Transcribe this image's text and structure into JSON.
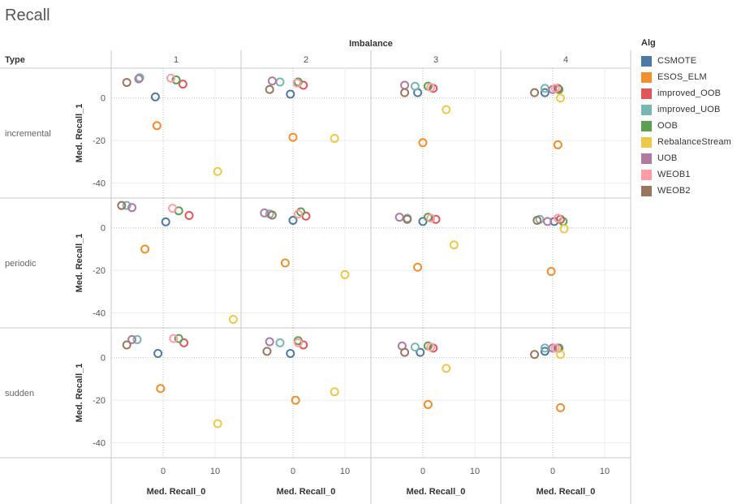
{
  "title": "Recall",
  "column_header": "Imbalance",
  "row_header": "Type",
  "legend_title": "Alg",
  "chart_data": {
    "type": "scatter",
    "columns": [
      "1",
      "2",
      "3",
      "4"
    ],
    "rows": [
      "incremental",
      "periodic",
      "sudden"
    ],
    "xlabel": "Med. Recall_0",
    "ylabel": "Med. Recall_1",
    "xlim": [
      -10,
      15
    ],
    "ylim": [
      -47,
      14
    ],
    "xticks": [
      0,
      10
    ],
    "yticks": [
      0,
      -20,
      -40
    ],
    "grid": true,
    "marker": "hollow-circle",
    "legend_position": "right",
    "series": [
      {
        "name": "CSMOTE",
        "color": "#4e79a7"
      },
      {
        "name": "ESOS_ELM",
        "color": "#f28e2b"
      },
      {
        "name": "improved_OOB",
        "color": "#e15759"
      },
      {
        "name": "improved_UOB",
        "color": "#76b7b2"
      },
      {
        "name": "OOB",
        "color": "#59a14f"
      },
      {
        "name": "RebalanceStream",
        "color": "#edc948"
      },
      {
        "name": "UOB",
        "color": "#b07aa1"
      },
      {
        "name": "WEOB1",
        "color": "#ff9da7"
      },
      {
        "name": "WEOB2",
        "color": "#9c755f"
      }
    ],
    "panels": [
      {
        "row": "incremental",
        "column": "1",
        "points": {
          "CSMOTE": [
            -1.5,
            0.5
          ],
          "ESOS_ELM": [
            -1.2,
            -13
          ],
          "improved_OOB": [
            3.8,
            6.5
          ],
          "improved_UOB": [
            -4.5,
            9.5
          ],
          "OOB": [
            2.5,
            8.5
          ],
          "RebalanceStream": [
            10.5,
            -34.5
          ],
          "UOB": [
            -4.7,
            9.0
          ],
          "WEOB1": [
            1.5,
            9.3
          ],
          "WEOB2": [
            -7,
            7.3
          ]
        }
      },
      {
        "row": "incremental",
        "column": "2",
        "points": {
          "CSMOTE": [
            -0.5,
            1.8
          ],
          "ESOS_ELM": [
            0,
            -18.5
          ],
          "improved_OOB": [
            2,
            6
          ],
          "improved_UOB": [
            -2.5,
            7.5
          ],
          "OOB": [
            1,
            7.5
          ],
          "RebalanceStream": [
            8,
            -19
          ],
          "UOB": [
            -4,
            8
          ],
          "WEOB1": [
            0.8,
            7
          ],
          "WEOB2": [
            -4.5,
            4
          ]
        }
      },
      {
        "row": "incremental",
        "column": "3",
        "points": {
          "CSMOTE": [
            -1,
            2.5
          ],
          "ESOS_ELM": [
            0,
            -21
          ],
          "improved_OOB": [
            2,
            4.5
          ],
          "improved_UOB": [
            -1.5,
            5.5
          ],
          "OOB": [
            1,
            5.5
          ],
          "RebalanceStream": [
            4.5,
            -5.5
          ],
          "UOB": [
            -3.5,
            6
          ],
          "WEOB1": [
            1.5,
            5
          ],
          "WEOB2": [
            -3.5,
            2.5
          ]
        }
      },
      {
        "row": "incremental",
        "column": "4",
        "points": {
          "CSMOTE": [
            -1.5,
            2.5
          ],
          "ESOS_ELM": [
            1,
            -22
          ],
          "improved_OOB": [
            1,
            4.5
          ],
          "improved_UOB": [
            -1.5,
            4.5
          ],
          "OOB": [
            1.2,
            4
          ],
          "RebalanceStream": [
            1.5,
            0
          ],
          "UOB": [
            0,
            4
          ],
          "WEOB1": [
            0.5,
            4.5
          ],
          "WEOB2": [
            -3.5,
            2.5
          ]
        }
      },
      {
        "row": "periodic",
        "column": "1",
        "points": {
          "CSMOTE": [
            0.5,
            2.8
          ],
          "ESOS_ELM": [
            -3.5,
            -10
          ],
          "improved_OOB": [
            5,
            5.8
          ],
          "improved_UOB": [
            -7,
            10.5
          ],
          "OOB": [
            3,
            8
          ],
          "RebalanceStream": [
            13.5,
            -43
          ],
          "UOB": [
            -6,
            9.5
          ],
          "WEOB1": [
            1.8,
            9.2
          ],
          "WEOB2": [
            -8,
            10.5
          ]
        }
      },
      {
        "row": "periodic",
        "column": "2",
        "points": {
          "CSMOTE": [
            0,
            3.5
          ],
          "ESOS_ELM": [
            -1.5,
            -16.5
          ],
          "improved_OOB": [
            2.5,
            5.5
          ],
          "improved_UOB": [
            -4.5,
            6.5
          ],
          "OOB": [
            1.5,
            7.5
          ],
          "RebalanceStream": [
            10,
            -22
          ],
          "UOB": [
            -5.5,
            7
          ],
          "WEOB1": [
            1,
            6.5
          ],
          "WEOB2": [
            -4,
            6
          ]
        }
      },
      {
        "row": "periodic",
        "column": "3",
        "points": {
          "CSMOTE": [
            0,
            3
          ],
          "ESOS_ELM": [
            -1,
            -18.5
          ],
          "improved_OOB": [
            2.5,
            4
          ],
          "improved_UOB": [
            -3,
            4.5
          ],
          "OOB": [
            1,
            5
          ],
          "RebalanceStream": [
            6,
            -8
          ],
          "UOB": [
            -4.5,
            5
          ],
          "WEOB1": [
            1.5,
            4.5
          ],
          "WEOB2": [
            -3,
            4
          ]
        }
      },
      {
        "row": "periodic",
        "column": "4",
        "points": {
          "CSMOTE": [
            0.3,
            3
          ],
          "ESOS_ELM": [
            -0.3,
            -20.5
          ],
          "improved_OOB": [
            1.5,
            4
          ],
          "improved_UOB": [
            -2.5,
            4
          ],
          "OOB": [
            2,
            3
          ],
          "RebalanceStream": [
            2.2,
            -0.5
          ],
          "UOB": [
            -1,
            3
          ],
          "WEOB1": [
            1,
            4.5
          ],
          "WEOB2": [
            -3,
            3.5
          ]
        }
      },
      {
        "row": "sudden",
        "column": "1",
        "points": {
          "CSMOTE": [
            -1,
            2
          ],
          "ESOS_ELM": [
            -0.5,
            -14.5
          ],
          "improved_OOB": [
            4,
            7
          ],
          "improved_UOB": [
            -5,
            8.5
          ],
          "OOB": [
            3,
            9
          ],
          "RebalanceStream": [
            10.5,
            -31
          ],
          "UOB": [
            -6,
            8.5
          ],
          "WEOB1": [
            2,
            9
          ],
          "WEOB2": [
            -7,
            6
          ]
        }
      },
      {
        "row": "sudden",
        "column": "2",
        "points": {
          "CSMOTE": [
            -0.5,
            2
          ],
          "ESOS_ELM": [
            0.5,
            -20
          ],
          "improved_OOB": [
            2,
            6
          ],
          "improved_UOB": [
            -2.5,
            7
          ],
          "OOB": [
            1,
            8
          ],
          "RebalanceStream": [
            8,
            -16
          ],
          "UOB": [
            -4.5,
            7.5
          ],
          "WEOB1": [
            1,
            7
          ],
          "WEOB2": [
            -5,
            3
          ]
        }
      },
      {
        "row": "sudden",
        "column": "3",
        "points": {
          "CSMOTE": [
            -0.5,
            2.5
          ],
          "ESOS_ELM": [
            1,
            -22
          ],
          "improved_OOB": [
            2,
            4.5
          ],
          "improved_UOB": [
            -1.5,
            5
          ],
          "OOB": [
            1,
            5.5
          ],
          "RebalanceStream": [
            4.5,
            -5
          ],
          "UOB": [
            -4,
            5.5
          ],
          "WEOB1": [
            1.5,
            5
          ],
          "WEOB2": [
            -3.5,
            2.5
          ]
        }
      },
      {
        "row": "sudden",
        "column": "4",
        "points": {
          "CSMOTE": [
            -1.5,
            3
          ],
          "ESOS_ELM": [
            1.5,
            -23.5
          ],
          "improved_OOB": [
            1,
            4.5
          ],
          "improved_UOB": [
            -1.5,
            4.5
          ],
          "OOB": [
            1.2,
            4.5
          ],
          "RebalanceStream": [
            1.5,
            1.5
          ],
          "UOB": [
            0,
            4.5
          ],
          "WEOB1": [
            0.5,
            4.5
          ],
          "WEOB2": [
            -3.5,
            1.5
          ]
        }
      }
    ]
  }
}
